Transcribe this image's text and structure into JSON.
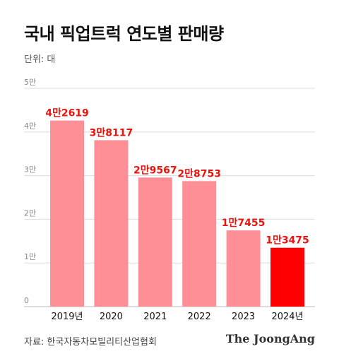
{
  "chart_data": {
    "type": "bar",
    "title": "국내 픽업트럭 연도별 판매량",
    "unit_label": "단위: 대",
    "categories": [
      "2019년",
      "2020",
      "2021",
      "2022",
      "2023",
      "2024년"
    ],
    "values": [
      42619,
      38117,
      29567,
      28753,
      17455,
      13475
    ],
    "data_labels": [
      "4만2619",
      "3만8117",
      "2만9567",
      "2만8753",
      "1만7455",
      "1만3475"
    ],
    "y_ticks": [
      {
        "value": 0,
        "label": "0"
      },
      {
        "value": 10000,
        "label": "1만"
      },
      {
        "value": 20000,
        "label": "2만"
      },
      {
        "value": 30000,
        "label": "3만"
      },
      {
        "value": 40000,
        "label": "4만"
      },
      {
        "value": 50000,
        "label": "5만"
      }
    ],
    "ylim": [
      0,
      50000
    ],
    "grid": true,
    "colors": {
      "bar": "#ff8f96",
      "highlight": "#ff0000",
      "label": "#e8130c",
      "grid": "#dddddd"
    },
    "highlight_index": 5
  },
  "footer": {
    "source": "자료: 한국자동차모빌리티산업협회",
    "brand": "The JoongAng"
  }
}
